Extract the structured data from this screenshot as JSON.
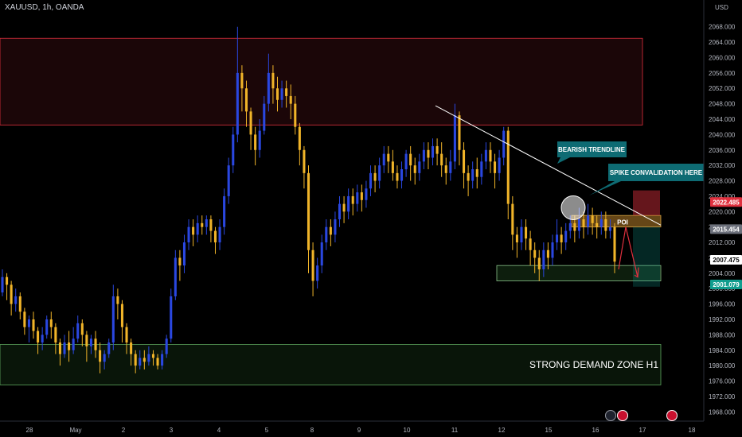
{
  "header": {
    "title": "XAUUSD, 1h, OANDA"
  },
  "colors": {
    "background": "#000000",
    "bull": "#2a47e0",
    "bear": "#f0b429",
    "supply_zone": "#e0303e",
    "demand_zone": "#3c8a3c",
    "teal_callout": "#0e6b73",
    "trendline": "#ffffff",
    "poi": "#b8802a",
    "price_red": "#e0303e",
    "price_teal": "#109d8e",
    "price_gray": "#6b6f7a"
  },
  "chart_data": {
    "type": "candlestick",
    "symbol": "XAUUSD",
    "timeframe": "1h",
    "source": "OANDA",
    "y_axis_unit": "USD",
    "ylim": [
      1966,
      2070
    ],
    "y_ticks": [
      1968,
      1972,
      1976,
      1980,
      1984,
      1988,
      1992,
      1996,
      2000,
      2004,
      2008,
      2012,
      2016,
      2020,
      2024,
      2028,
      2032,
      2036,
      2040,
      2044,
      2048,
      2052,
      2056,
      2060,
      2064,
      2068
    ],
    "y_tick_labels": [
      "1968.000",
      "1972.000",
      "1976.000",
      "1980.000",
      "1984.000",
      "1988.000",
      "1992.000",
      "1996.000",
      "2000.000",
      "2004.000",
      "2008.000",
      "2012.000",
      "2016.000",
      "2020.000",
      "2024.000",
      "2028.000",
      "2032.000",
      "2036.000",
      "2040.000",
      "2044.000",
      "2048.000",
      "2052.000",
      "2056.000",
      "2060.000",
      "2064.000",
      "2068.000"
    ],
    "x_ticks": [
      "28",
      "May",
      "2",
      "3",
      "4",
      "5",
      "8",
      "9",
      "10",
      "11",
      "12",
      "15",
      "16",
      "17",
      "18"
    ],
    "x_tick_positions": [
      0,
      58,
      118,
      178,
      238,
      298,
      355,
      414,
      474,
      534,
      593,
      652,
      711,
      770,
      832
    ],
    "price_tags": [
      {
        "value": 2022.485,
        "label": "2022.485",
        "style": "red"
      },
      {
        "value": 2015.454,
        "label": "2015.454",
        "style": "gray"
      },
      {
        "value": 2007.475,
        "label": "2007.475",
        "style": "white"
      },
      {
        "value": 2001.079,
        "label": "2001.079",
        "style": "teal"
      }
    ],
    "zones": [
      {
        "name": "supply",
        "from": 2042.5,
        "to": 2065,
        "x_start": 0,
        "x_end": 770
      },
      {
        "name": "demand",
        "from": 1975,
        "to": 1985.5,
        "x_start": 0,
        "x_end": 793,
        "label": "STRONG DEMAND ZONE H1"
      },
      {
        "name": "poi",
        "from": 2016,
        "to": 2019,
        "x_start": 718,
        "x_end": 793,
        "label": "POI"
      },
      {
        "name": "target",
        "from": 2002,
        "to": 2006,
        "x_start": 624,
        "x_end": 793
      }
    ],
    "trendline": {
      "x1": 510,
      "y1": 2047.5,
      "x2": 793,
      "y2": 2016.5
    },
    "annotations": [
      {
        "text": "BEARISH TRENDLINE"
      },
      {
        "text": "SPIKE CONVALIDATION HERE"
      }
    ],
    "candles": [
      [
        1999,
        2003,
        1998,
        2005
      ],
      [
        2003,
        2001,
        1997,
        2004
      ],
      [
        2001,
        1996,
        1993,
        2002
      ],
      [
        1996,
        1998,
        1994,
        2000
      ],
      [
        1998,
        1994,
        1992,
        1999
      ],
      [
        1994,
        1990,
        1988,
        1995
      ],
      [
        1990,
        1992,
        1986,
        1993
      ],
      [
        1992,
        1989,
        1987,
        1994
      ],
      [
        1989,
        1986,
        1983,
        1990
      ],
      [
        1986,
        1988,
        1984,
        1990
      ],
      [
        1988,
        1992,
        1987,
        1993
      ],
      [
        1992,
        1990,
        1987,
        1994
      ],
      [
        1990,
        1986,
        1983,
        1991
      ],
      [
        1986,
        1983,
        1980,
        1987
      ],
      [
        1983,
        1986,
        1982,
        1988
      ],
      [
        1986,
        1984,
        1981,
        1989
      ],
      [
        1984,
        1987,
        1983,
        1990
      ],
      [
        1987,
        1991,
        1986,
        1993
      ],
      [
        1991,
        1988,
        1985,
        1992
      ],
      [
        1988,
        1985,
        1981,
        1989
      ],
      [
        1985,
        1987,
        1983,
        1988
      ],
      [
        1987,
        1984,
        1982,
        1989
      ],
      [
        1984,
        1981,
        1978,
        1986
      ],
      [
        1981,
        1983,
        1979,
        1984
      ],
      [
        1983,
        1986,
        1982,
        1987
      ],
      [
        1986,
        1998,
        1984,
        2001
      ],
      [
        1998,
        1996,
        1992,
        2000
      ],
      [
        1996,
        1990,
        1986,
        1997
      ],
      [
        1990,
        1986,
        1983,
        1991
      ],
      [
        1986,
        1983,
        1980,
        1987
      ],
      [
        1983,
        1980,
        1978,
        1984
      ],
      [
        1980,
        1982,
        1979,
        1984
      ],
      [
        1982,
        1981,
        1979,
        1984
      ],
      [
        1981,
        1983,
        1980,
        1985
      ],
      [
        1983,
        1982,
        1980,
        1984
      ],
      [
        1982,
        1980,
        1979,
        1983
      ],
      [
        1980,
        1983,
        1979,
        1984
      ],
      [
        1983,
        1987,
        1982,
        1988
      ],
      [
        1987,
        1998,
        1986,
        2000
      ],
      [
        1998,
        2008,
        1997,
        2010
      ],
      [
        2008,
        2006,
        2002,
        2010
      ],
      [
        2006,
        2012,
        2004,
        2014
      ],
      [
        2012,
        2016,
        2010,
        2018
      ],
      [
        2016,
        2014,
        2011,
        2018
      ],
      [
        2014,
        2017,
        2012,
        2019
      ],
      [
        2017,
        2016,
        2014,
        2019
      ],
      [
        2016,
        2018,
        2014,
        2019
      ],
      [
        2018,
        2015,
        2012,
        2019
      ],
      [
        2015,
        2012,
        2009,
        2016
      ],
      [
        2012,
        2016,
        2010,
        2018
      ],
      [
        2016,
        2024,
        2014,
        2026
      ],
      [
        2024,
        2032,
        2022,
        2034
      ],
      [
        2032,
        2040,
        2030,
        2042
      ],
      [
        2040,
        2056,
        2038,
        2068
      ],
      [
        2056,
        2052,
        2046,
        2058
      ],
      [
        2052,
        2046,
        2042,
        2054
      ],
      [
        2046,
        2040,
        2036,
        2047
      ],
      [
        2040,
        2036,
        2032,
        2042
      ],
      [
        2036,
        2041,
        2034,
        2044
      ],
      [
        2041,
        2048,
        2040,
        2050
      ],
      [
        2048,
        2056,
        2046,
        2061
      ],
      [
        2056,
        2052,
        2048,
        2058
      ],
      [
        2052,
        2049,
        2046,
        2055
      ],
      [
        2049,
        2052,
        2047,
        2054
      ],
      [
        2052,
        2050,
        2047,
        2054
      ],
      [
        2050,
        2048,
        2044,
        2053
      ],
      [
        2048,
        2042,
        2040,
        2050
      ],
      [
        2042,
        2036,
        2032,
        2043
      ],
      [
        2036,
        2030,
        2026,
        2037
      ],
      [
        2030,
        2010,
        2004,
        2032
      ],
      [
        2010,
        2002,
        1998,
        2012
      ],
      [
        2002,
        2006,
        2000,
        2008
      ],
      [
        2006,
        2012,
        2004,
        2014
      ],
      [
        2012,
        2016,
        2010,
        2018
      ],
      [
        2016,
        2014,
        2011,
        2018
      ],
      [
        2014,
        2018,
        2012,
        2020
      ],
      [
        2018,
        2022,
        2016,
        2024
      ],
      [
        2022,
        2020,
        2017,
        2024
      ],
      [
        2020,
        2024,
        2018,
        2026
      ],
      [
        2024,
        2022,
        2019,
        2026
      ],
      [
        2022,
        2025,
        2020,
        2027
      ],
      [
        2025,
        2023,
        2020,
        2027
      ],
      [
        2023,
        2026,
        2021,
        2028
      ],
      [
        2026,
        2030,
        2024,
        2032
      ],
      [
        2030,
        2028,
        2025,
        2032
      ],
      [
        2028,
        2032,
        2026,
        2034
      ],
      [
        2032,
        2035,
        2030,
        2037
      ],
      [
        2035,
        2033,
        2030,
        2037
      ],
      [
        2033,
        2030,
        2028,
        2036
      ],
      [
        2030,
        2028,
        2026,
        2032
      ],
      [
        2028,
        2031,
        2026,
        2033
      ],
      [
        2031,
        2035,
        2029,
        2036
      ],
      [
        2035,
        2032,
        2028,
        2037
      ],
      [
        2032,
        2030,
        2027,
        2034
      ],
      [
        2030,
        2033,
        2028,
        2035
      ],
      [
        2033,
        2036,
        2031,
        2038
      ],
      [
        2036,
        2034,
        2031,
        2038
      ],
      [
        2034,
        2037,
        2032,
        2039
      ],
      [
        2037,
        2035,
        2032,
        2039
      ],
      [
        2035,
        2032,
        2029,
        2038
      ],
      [
        2032,
        2030,
        2027,
        2034
      ],
      [
        2030,
        2033,
        2028,
        2036
      ],
      [
        2033,
        2045,
        2031,
        2048
      ],
      [
        2045,
        2036,
        2032,
        2046
      ],
      [
        2036,
        2030,
        2026,
        2038
      ],
      [
        2030,
        2028,
        2024,
        2032
      ],
      [
        2028,
        2031,
        2026,
        2033
      ],
      [
        2031,
        2029,
        2026,
        2034
      ],
      [
        2029,
        2033,
        2027,
        2035
      ],
      [
        2033,
        2036,
        2031,
        2038
      ],
      [
        2036,
        2033,
        2030,
        2038
      ],
      [
        2033,
        2030,
        2026,
        2035
      ],
      [
        2030,
        2034,
        2028,
        2036
      ],
      [
        2034,
        2041,
        2032,
        2042
      ],
      [
        2041,
        2022,
        2018,
        2042
      ],
      [
        2022,
        2014,
        2010,
        2024
      ],
      [
        2014,
        2012,
        2008,
        2016
      ],
      [
        2012,
        2016,
        2010,
        2018
      ],
      [
        2016,
        2013,
        2010,
        2018
      ],
      [
        2013,
        2010,
        2006,
        2015
      ],
      [
        2010,
        2008,
        2004,
        2012
      ],
      [
        2008,
        2005,
        2002,
        2010
      ],
      [
        2005,
        2010,
        2003,
        2012
      ],
      [
        2010,
        2008,
        2005,
        2012
      ],
      [
        2008,
        2012,
        2006,
        2014
      ],
      [
        2012,
        2014,
        2010,
        2018
      ],
      [
        2014,
        2012,
        2009,
        2016
      ],
      [
        2012,
        2015,
        2010,
        2017
      ],
      [
        2015,
        2017,
        2013,
        2019
      ],
      [
        2017,
        2015,
        2012,
        2019
      ],
      [
        2015,
        2018,
        2013,
        2021
      ],
      [
        2018,
        2016,
        2013,
        2020
      ],
      [
        2016,
        2019,
        2014,
        2022
      ],
      [
        2019,
        2017,
        2014,
        2021
      ],
      [
        2017,
        2016,
        2013,
        2019
      ],
      [
        2016,
        2018,
        2014,
        2020
      ],
      [
        2018,
        2015,
        2013,
        2020
      ],
      [
        2015,
        2016,
        2013,
        2018
      ],
      [
        2016,
        2007,
        2004,
        2017
      ]
    ]
  }
}
